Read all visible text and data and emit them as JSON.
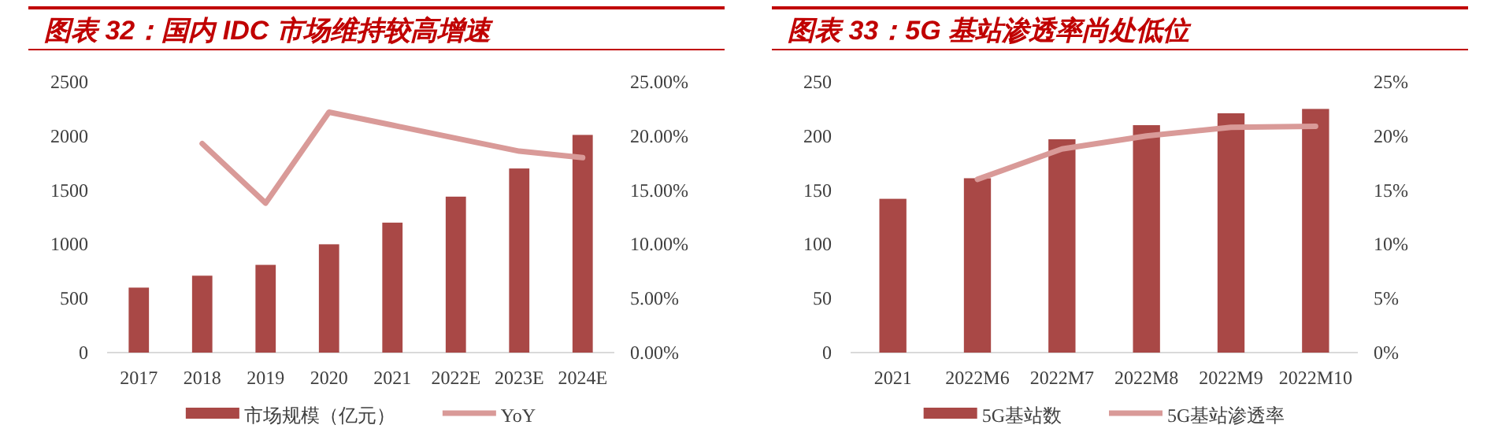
{
  "chart_data": [
    {
      "type": "bar",
      "title": "图表 32：国内 IDC 市场维持较高增速",
      "categories": [
        "2017",
        "2018",
        "2019",
        "2020",
        "2021",
        "2022E",
        "2023E",
        "2024E"
      ],
      "series": [
        {
          "name": "市场规模（亿元）",
          "color": "#a94846",
          "values": [
            600,
            710,
            810,
            1000,
            1200,
            1440,
            1700,
            2010
          ]
        },
        {
          "name": "YoY",
          "type": "line",
          "axis": "y2",
          "color": "#d99a98",
          "values": [
            null,
            19.3,
            13.8,
            22.2,
            21.0,
            19.8,
            18.6,
            18.0
          ]
        }
      ],
      "ylim": [
        0,
        2500
      ],
      "yticks": [
        0,
        500,
        1000,
        1500,
        2000,
        2500
      ],
      "y2lim": [
        0,
        25
      ],
      "y2ticks": [
        {
          "value": 0,
          "label": "0.00%"
        },
        {
          "value": 5,
          "label": "5.00%"
        },
        {
          "value": 10,
          "label": "10.00%"
        },
        {
          "value": 15,
          "label": "15.00%"
        },
        {
          "value": 20,
          "label": "20.00%"
        },
        {
          "value": 25,
          "label": "25.00%"
        }
      ],
      "legend": "bottom"
    },
    {
      "type": "bar",
      "title": "图表 33：5G 基站渗透率尚处低位",
      "categories": [
        "2021",
        "2022M6",
        "2022M7",
        "2022M8",
        "2022M9",
        "2022M10"
      ],
      "series": [
        {
          "name": "5G基站数",
          "color": "#a94846",
          "values": [
            142,
            161,
            197,
            210,
            221,
            225
          ]
        },
        {
          "name": "5G基站渗透率",
          "type": "line",
          "axis": "y2",
          "color": "#d99a98",
          "values": [
            null,
            16.0,
            18.8,
            20.0,
            20.8,
            20.9
          ]
        }
      ],
      "ylim": [
        0,
        250
      ],
      "yticks": [
        0,
        50,
        100,
        150,
        200,
        250
      ],
      "y2lim": [
        0,
        25
      ],
      "y2ticks": [
        {
          "value": 0,
          "label": "0%"
        },
        {
          "value": 5,
          "label": "5%"
        },
        {
          "value": 10,
          "label": "10%"
        },
        {
          "value": 15,
          "label": "15%"
        },
        {
          "value": 20,
          "label": "20%"
        },
        {
          "value": 25,
          "label": "25%"
        }
      ],
      "legend": "bottom"
    }
  ]
}
